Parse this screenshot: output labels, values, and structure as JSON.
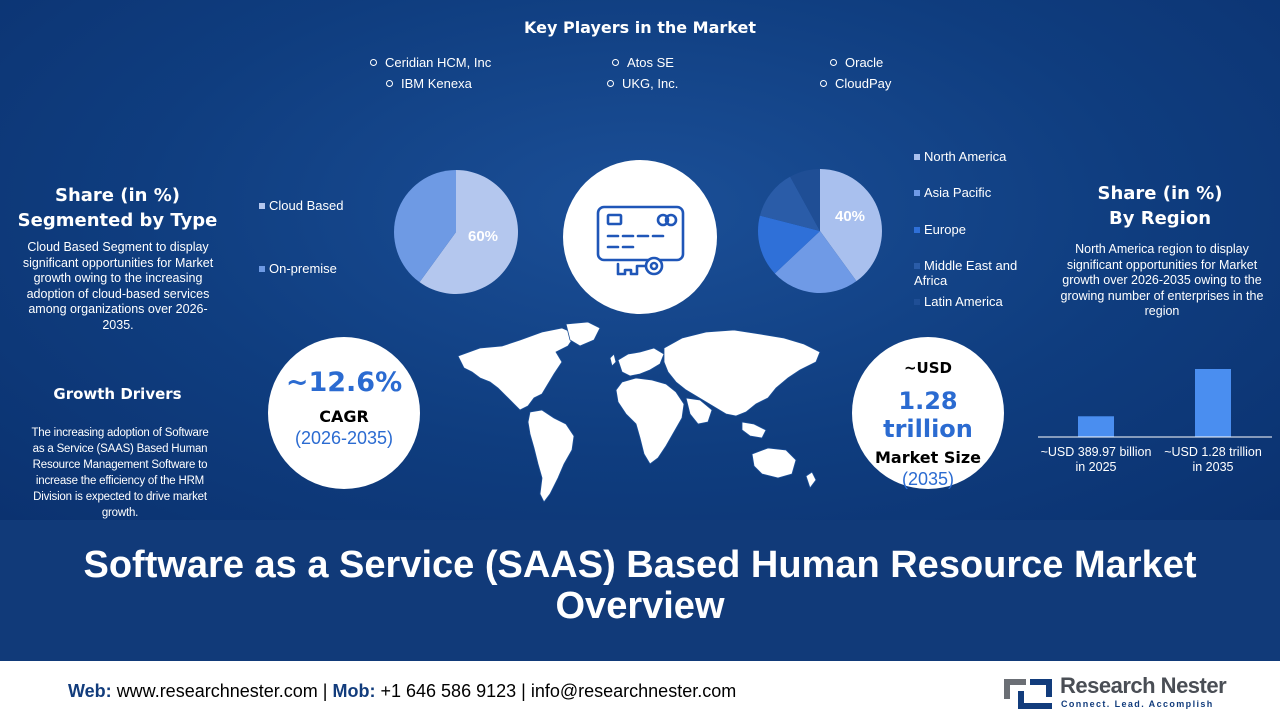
{
  "key_players": {
    "title": "Key Players in the Market",
    "items": [
      "Ceridian HCM, Inc",
      "Atos SE",
      "Oracle",
      "IBM Kenexa",
      "UKG, Inc.",
      "CloudPay"
    ]
  },
  "type_share": {
    "title_line1": "Share (in %)",
    "title_line2": "Segmented by Type",
    "description": "Cloud Based Segment to display significant opportunities for Market growth owing to the increasing adoption of cloud-based services among organizations over 2026-2035."
  },
  "growth_drivers": {
    "title": "Growth Drivers",
    "description": "The increasing adoption of Software as a Service (SAAS) Based Human Resource Management Software to increase the efficiency of the HRM Division is expected to drive market growth."
  },
  "cagr": {
    "value": "~12.6%",
    "label": "CAGR",
    "period": "(2026-2035)"
  },
  "market_size": {
    "prefix": "~USD",
    "value": "1.28 trillion",
    "label": "Market Size",
    "year": "(2035)"
  },
  "region_share": {
    "title_line1": "Share (in %)",
    "title_line2": "By Region",
    "description": "North America region to display significant opportunities for Market growth over 2026-2035 owing to the growing number of enterprises in the region"
  },
  "icons": {
    "center": "credit-card-key-icon",
    "map": "world-map-icon",
    "logo": "research-nester-logo-icon"
  },
  "colors": {
    "background": "#0f3d7f",
    "band": "#113a79",
    "accent": "#2b6bd1",
    "bar": "#4a8ef0",
    "cloud_based": "#b4c7ee",
    "on_premise": "#6e9ae4",
    "north_america": "#a9c0ee",
    "asia_pacific": "#6f9ae6",
    "europe": "#2f70d8",
    "middle_east_africa": "#2a5ca8",
    "latin_america": "#1f4e95"
  },
  "chart_data": [
    {
      "type": "pie",
      "categories": [
        "Cloud Based",
        "On-premise"
      ],
      "values": [
        60,
        40
      ],
      "data_labels": [
        "60%",
        ""
      ]
    },
    {
      "type": "pie",
      "categories": [
        "North America",
        "Asia Pacific",
        "Europe",
        "Middle East and Africa",
        "Latin America"
      ],
      "values": [
        40,
        23,
        16,
        13,
        8
      ],
      "data_labels": [
        "40%",
        "",
        "",
        "",
        ""
      ]
    },
    {
      "type": "bar",
      "categories": [
        "~USD 389.97 billion in 2025",
        "~USD 1.28 trillion in 2035"
      ],
      "category_lines": [
        [
          "~USD 389.97 billion",
          "in 2025"
        ],
        [
          "~USD 1.28 trillion",
          "in 2035"
        ]
      ],
      "values": [
        389.97,
        1280
      ],
      "unit": "USD billion"
    }
  ],
  "title": {
    "line1": "Software as a Service (SAAS) Based Human Resource Market",
    "line2": "Overview"
  },
  "footer": {
    "web_label": "Web:",
    "web": "www.researchnester.com",
    "mob_label": "Mob:",
    "mob": "+1 646 586 9123",
    "email": "info@researchnester.com",
    "separator": "|",
    "brand": "Research Nester",
    "tagline": "Connect. Lead. Accomplish"
  }
}
